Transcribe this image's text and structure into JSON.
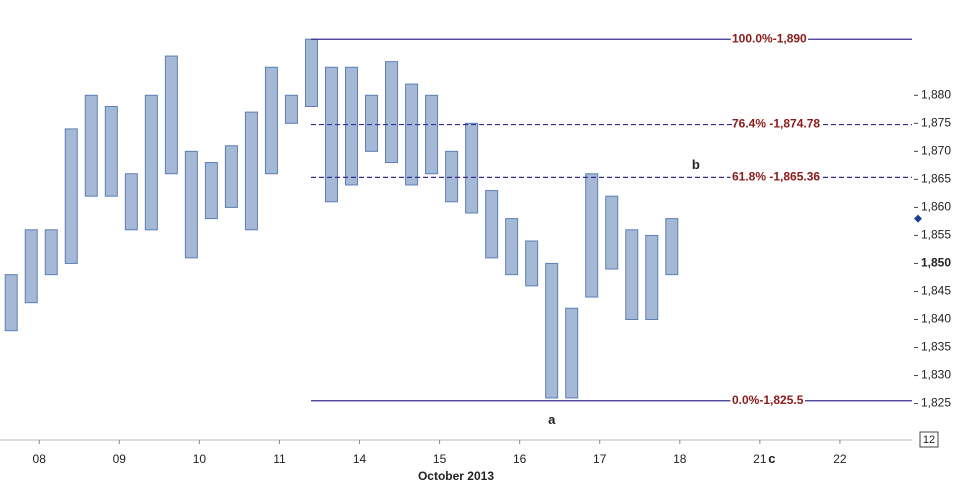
{
  "chart_data": {
    "type": "range-bar",
    "color": "#5b7fb5",
    "xlabel": "October 2013",
    "xlim": [
      -0.49,
      10.9
    ],
    "xticks": [
      {
        "value": 0,
        "label": "08"
      },
      {
        "value": 1,
        "label": "09"
      },
      {
        "value": 2,
        "label": "10"
      },
      {
        "value": 3,
        "label": "11"
      },
      {
        "value": 4,
        "label": "14"
      },
      {
        "value": 5,
        "label": "15"
      },
      {
        "value": 6,
        "label": "16"
      },
      {
        "value": 7,
        "label": "17"
      },
      {
        "value": 8,
        "label": "18"
      },
      {
        "value": 9,
        "label": "21"
      },
      {
        "value": 10,
        "label": "22"
      }
    ],
    "ylim": [
      1818.5,
      1897
    ],
    "yticks": [
      {
        "value": 1880,
        "label": "1,880"
      },
      {
        "value": 1875,
        "label": "1,875"
      },
      {
        "value": 1870,
        "label": "1,870"
      },
      {
        "value": 1865,
        "label": "1,865"
      },
      {
        "value": 1860,
        "label": "1,860"
      },
      {
        "value": 1855,
        "label": "1,855"
      },
      {
        "value": 1850,
        "label": "1,850"
      },
      {
        "value": 1845,
        "label": "1,845"
      },
      {
        "value": 1840,
        "label": "1,840"
      },
      {
        "value": 1835,
        "label": "1,835"
      },
      {
        "value": 1830,
        "label": "1,830"
      },
      {
        "value": 1825,
        "label": "1,825"
      }
    ],
    "emphasized_ytick": 1850,
    "last_price": 1858,
    "last_price_color": "#1f3f8f",
    "x": [
      -0.35,
      -0.1,
      0.15,
      0.4,
      0.65,
      0.9,
      1.15,
      1.4,
      1.65,
      1.9,
      2.15,
      2.4,
      2.65,
      2.9,
      3.15,
      3.4,
      3.65,
      3.9,
      4.15,
      4.4,
      4.65,
      4.9,
      5.15,
      5.4,
      5.65,
      5.9,
      6.15,
      6.4,
      6.65,
      6.9,
      7.15,
      7.4,
      7.65,
      7.9
    ],
    "high": [
      1848,
      1856,
      1856,
      1874,
      1880,
      1878,
      1866,
      1880,
      1887,
      1870,
      1868,
      1871,
      1877,
      1885,
      1880,
      1890,
      1885,
      1885,
      1880,
      1886,
      1882,
      1880,
      1870,
      1875,
      1863,
      1858,
      1854,
      1850,
      1842,
      1866,
      1862,
      1856,
      1855,
      1858
    ],
    "low": [
      1838,
      1843,
      1848,
      1850,
      1862,
      1862,
      1856,
      1856,
      1866,
      1851,
      1858,
      1860,
      1856,
      1866,
      1875,
      1878,
      1861,
      1864,
      1870,
      1868,
      1864,
      1866,
      1861,
      1859,
      1851,
      1848,
      1846,
      1826,
      1826,
      1844,
      1849,
      1840,
      1840,
      1848
    ],
    "fib_levels": [
      {
        "text": "100.0%-1,890",
        "value": 1890,
        "style": "solid"
      },
      {
        "text": "76.4% -1,874.78",
        "value": 1874.78,
        "style": "dashed"
      },
      {
        "text": "61.8% -1,865.36",
        "value": 1865.36,
        "style": "dashed"
      },
      {
        "text": "0.0%-1,825.5",
        "value": 1825.5,
        "style": "solid"
      }
    ],
    "fib_color": "#3a2f8f",
    "annotations": [
      {
        "text": "a",
        "x": 6.4,
        "y": 1822
      },
      {
        "text": "b",
        "x": 8.2,
        "y": 1867.5
      },
      {
        "text": "c",
        "x": 9.15,
        "y": 1815
      }
    ],
    "badge": "12"
  }
}
